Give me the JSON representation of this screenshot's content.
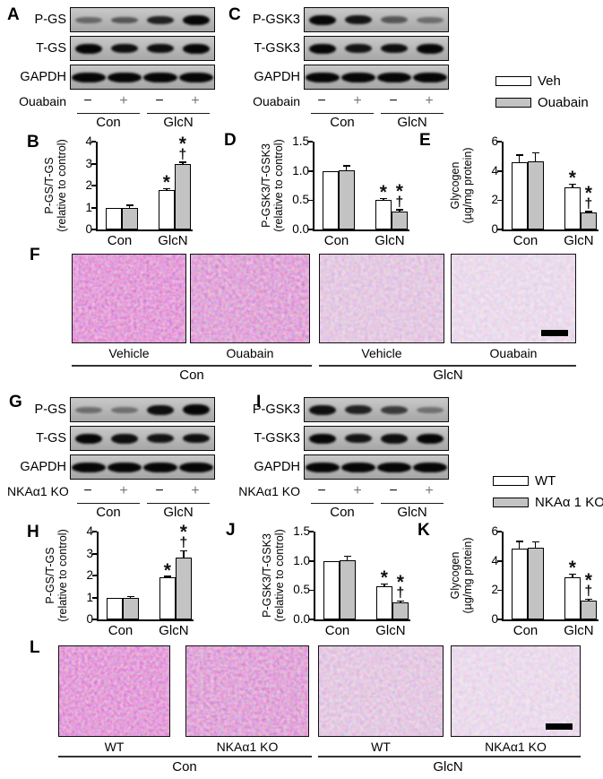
{
  "panel_letters": {
    "A": "A",
    "B": "B",
    "C": "C",
    "D": "D",
    "E": "E",
    "F": "F",
    "G": "G",
    "H": "H",
    "I": "I",
    "J": "J",
    "K": "K",
    "L": "L"
  },
  "legends": [
    {
      "items": [
        {
          "label": "Veh",
          "fill": "#ffffff"
        },
        {
          "label": "Ouabain",
          "fill": "#c3c3c3"
        }
      ]
    },
    {
      "items": [
        {
          "label": "WT",
          "fill": "#ffffff"
        },
        {
          "label": "NKAα 1 KO",
          "fill": "#c3c3c3"
        }
      ]
    }
  ],
  "blots": [
    {
      "panel": "A",
      "treatment": "Ouabain",
      "marks": [
        "−",
        "+",
        "−",
        "+"
      ],
      "groups": [
        "Con",
        "GlcN"
      ],
      "rows": [
        {
          "label": "P-GS",
          "wide": false,
          "bands": [
            0.45,
            0.55,
            0.85,
            1.0
          ],
          "heights": [
            7,
            7,
            9,
            11
          ]
        },
        {
          "label": "T-GS",
          "wide": false,
          "bands": [
            1.0,
            0.95,
            0.95,
            1.0
          ],
          "heights": [
            11,
            10,
            10,
            11
          ]
        },
        {
          "label": "GAPDH",
          "wide": true,
          "bands": [
            1.0,
            1.0,
            1.0,
            1.0
          ],
          "heights": [
            11,
            11,
            11,
            11
          ]
        }
      ]
    },
    {
      "panel": "C",
      "treatment": "Ouabain",
      "marks": [
        "−",
        "+",
        "−",
        "+"
      ],
      "groups": [
        "Con",
        "GlcN"
      ],
      "rows": [
        {
          "label": "P-GSK3",
          "wide": false,
          "bands": [
            1.0,
            0.92,
            0.55,
            0.42
          ],
          "heights": [
            11,
            10,
            8,
            7
          ]
        },
        {
          "label": "T-GSK3",
          "wide": false,
          "bands": [
            1.0,
            0.92,
            0.95,
            1.0
          ],
          "heights": [
            11,
            10,
            10,
            11
          ]
        },
        {
          "label": "GAPDH",
          "wide": true,
          "bands": [
            1.0,
            1.0,
            1.0,
            1.0
          ],
          "heights": [
            11,
            11,
            11,
            11
          ]
        }
      ]
    },
    {
      "panel": "G",
      "treatment": "NKAα1 KO",
      "marks": [
        "−",
        "+",
        "−",
        "+"
      ],
      "groups": [
        "Con",
        "GlcN"
      ],
      "rows": [
        {
          "label": "P-GS",
          "wide": false,
          "bands": [
            0.42,
            0.4,
            0.95,
            1.0
          ],
          "heights": [
            7,
            7,
            11,
            12
          ]
        },
        {
          "label": "T-GS",
          "wide": false,
          "bands": [
            1.0,
            0.95,
            0.92,
            0.95
          ],
          "heights": [
            11,
            11,
            10,
            10
          ]
        },
        {
          "label": "GAPDH",
          "wide": true,
          "bands": [
            1.0,
            1.0,
            1.0,
            1.0
          ],
          "heights": [
            11,
            11,
            11,
            11
          ]
        }
      ]
    },
    {
      "panel": "I",
      "treatment": "NKAα1 KO",
      "marks": [
        "−",
        "+",
        "−",
        "+"
      ],
      "groups": [
        "Con",
        "GlcN"
      ],
      "rows": [
        {
          "label": "P-GSK3",
          "wide": false,
          "bands": [
            0.95,
            0.85,
            0.7,
            0.4
          ],
          "heights": [
            11,
            10,
            9,
            7
          ]
        },
        {
          "label": "T-GSK3",
          "wide": false,
          "bands": [
            1.0,
            0.92,
            0.95,
            1.0
          ],
          "heights": [
            11,
            10,
            11,
            11
          ]
        },
        {
          "label": "GAPDH",
          "wide": true,
          "bands": [
            1.0,
            1.0,
            1.0,
            1.0
          ],
          "heights": [
            11,
            11,
            11,
            11
          ]
        }
      ]
    }
  ],
  "chart_data": [
    {
      "panel": "B",
      "type": "bar",
      "categories": [
        "Con",
        "GlcN"
      ],
      "ylabel_lines": [
        "P-GS/T-GS",
        "(relative to control)"
      ],
      "ylim": [
        0,
        4
      ],
      "yticks": [
        "0",
        "1",
        "2",
        "3",
        "4"
      ],
      "legend_position": "none",
      "grid": false,
      "series": [
        {
          "name": "Veh",
          "fill": "#ffffff",
          "values": [
            1.0,
            1.8
          ],
          "errors": [
            0,
            0.06
          ],
          "sig": [
            [],
            [
              "*"
            ]
          ]
        },
        {
          "name": "Ouabain",
          "fill": "#c3c3c3",
          "values": [
            1.0,
            2.97
          ],
          "errors": [
            0.12,
            0.1
          ],
          "sig": [
            [],
            [
              "*",
              "†"
            ]
          ]
        }
      ]
    },
    {
      "panel": "D",
      "type": "bar",
      "categories": [
        "Con",
        "GlcN"
      ],
      "ylabel_lines": [
        "P-GSK3/T-GSK3",
        "(relative to control)"
      ],
      "ylim": [
        0,
        1.5
      ],
      "yticks": [
        "0.0",
        "0.5",
        "1.0",
        "1.5"
      ],
      "legend_position": "none",
      "grid": false,
      "series": [
        {
          "name": "Veh",
          "fill": "#ffffff",
          "values": [
            1.0,
            0.5
          ],
          "errors": [
            0,
            0.03
          ],
          "sig": [
            [],
            [
              "*"
            ]
          ]
        },
        {
          "name": "Ouabain",
          "fill": "#c3c3c3",
          "values": [
            1.01,
            0.3
          ],
          "errors": [
            0.08,
            0.04
          ],
          "sig": [
            [],
            [
              "*",
              "†"
            ]
          ]
        }
      ]
    },
    {
      "panel": "E",
      "type": "bar",
      "categories": [
        "Con",
        "GlcN"
      ],
      "ylabel_lines": [
        "Glycogen",
        "(µg/mg protein)"
      ],
      "ylim": [
        0,
        6
      ],
      "yticks": [
        "0",
        "2",
        "4",
        "6"
      ],
      "legend_position": "none",
      "grid": false,
      "series": [
        {
          "name": "Veh",
          "fill": "#ffffff",
          "values": [
            4.6,
            2.85
          ],
          "errors": [
            0.5,
            0.25
          ],
          "sig": [
            [],
            [
              "*"
            ]
          ]
        },
        {
          "name": "Ouabain",
          "fill": "#c3c3c3",
          "values": [
            4.65,
            1.15
          ],
          "errors": [
            0.6,
            0.1
          ],
          "sig": [
            [],
            [
              "*",
              "†"
            ]
          ]
        }
      ]
    },
    {
      "panel": "H",
      "type": "bar",
      "categories": [
        "Con",
        "GlcN"
      ],
      "ylabel_lines": [
        "P-GS/T-GS",
        "(relative to control)"
      ],
      "ylim": [
        0,
        4
      ],
      "yticks": [
        "0",
        "1",
        "2",
        "3",
        "4"
      ],
      "legend_position": "none",
      "grid": false,
      "series": [
        {
          "name": "WT",
          "fill": "#ffffff",
          "values": [
            1.0,
            1.9
          ],
          "errors": [
            0,
            0.07
          ],
          "sig": [
            [],
            [
              "*"
            ]
          ]
        },
        {
          "name": "NKAα 1 KO",
          "fill": "#c3c3c3",
          "values": [
            1.0,
            2.8
          ],
          "errors": [
            0.05,
            0.33
          ],
          "sig": [
            [],
            [
              "*",
              "†"
            ]
          ]
        }
      ]
    },
    {
      "panel": "J",
      "type": "bar",
      "categories": [
        "Con",
        "GlcN"
      ],
      "ylabel_lines": [
        "P-GSK3/T-GSK3",
        "(relative to control)"
      ],
      "ylim": [
        0,
        1.5
      ],
      "yticks": [
        "0.0",
        "0.5",
        "1.0",
        "1.5"
      ],
      "legend_position": "none",
      "grid": false,
      "series": [
        {
          "name": "WT",
          "fill": "#ffffff",
          "values": [
            1.0,
            0.57
          ],
          "errors": [
            0,
            0.04
          ],
          "sig": [
            [],
            [
              "*"
            ]
          ]
        },
        {
          "name": "NKAα 1 KO",
          "fill": "#c3c3c3",
          "values": [
            1.01,
            0.29
          ],
          "errors": [
            0.07,
            0.03
          ],
          "sig": [
            [],
            [
              "*",
              "†"
            ]
          ]
        }
      ]
    },
    {
      "panel": "K",
      "type": "bar",
      "categories": [
        "Con",
        "GlcN"
      ],
      "ylabel_lines": [
        "Glycogen",
        "(µg/mg protein)"
      ],
      "ylim": [
        0,
        6
      ],
      "yticks": [
        "0",
        "2",
        "4",
        "6"
      ],
      "legend_position": "none",
      "grid": false,
      "series": [
        {
          "name": "WT",
          "fill": "#ffffff",
          "values": [
            4.85,
            2.85
          ],
          "errors": [
            0.5,
            0.25
          ],
          "sig": [
            [],
            [
              "*"
            ]
          ]
        },
        {
          "name": "NKAα 1 KO",
          "fill": "#c3c3c3",
          "values": [
            4.9,
            1.3
          ],
          "errors": [
            0.4,
            0.08
          ],
          "sig": [
            [],
            [
              "*",
              "†"
            ]
          ]
        }
      ]
    }
  ],
  "micro": [
    {
      "panel": "F",
      "groups": [
        "Con",
        "GlcN"
      ],
      "images": [
        {
          "label": "Vehicle",
          "variant": "dense1",
          "scalebar": false
        },
        {
          "label": "Ouabain",
          "variant": "dense2",
          "scalebar": false
        },
        {
          "label": "Vehicle",
          "variant": "medium",
          "scalebar": false
        },
        {
          "label": "Ouabain",
          "variant": "light",
          "scalebar": true
        }
      ]
    },
    {
      "panel": "L",
      "groups": [
        "Con",
        "GlcN"
      ],
      "images": [
        {
          "label": "WT",
          "variant": "dense1",
          "scalebar": false
        },
        {
          "label": "NKAα1 KO",
          "variant": "dense2",
          "scalebar": false
        },
        {
          "label": "WT",
          "variant": "medium",
          "scalebar": false
        },
        {
          "label": "NKAα1 KO",
          "variant": "light",
          "scalebar": true
        }
      ]
    }
  ]
}
